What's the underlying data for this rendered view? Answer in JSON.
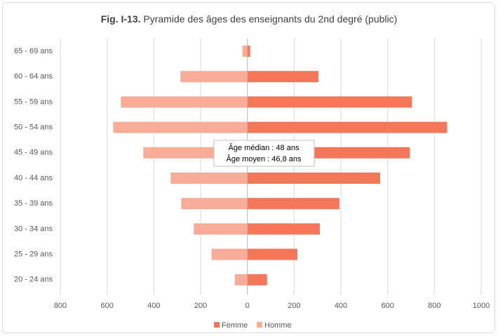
{
  "chart_data": {
    "type": "pyramid",
    "title_number": "Fig. I-13.",
    "title": "Pyramide des âges des enseignants du 2nd degré (public)",
    "categories": [
      "65 - 69 ans",
      "60 - 64 ans",
      "55 - 59 ans",
      "50 - 54 ans",
      "45 - 49 ans",
      "40 - 44 ans",
      "35 - 39 ans",
      "30 - 34 ans",
      "25 - 29 ans",
      "20 - 24 ans"
    ],
    "series": [
      {
        "name": "Femme",
        "color": "#f4775a",
        "values": [
          12,
          304,
          704,
          854,
          695,
          568,
          394,
          310,
          214,
          84
        ]
      },
      {
        "name": "Homme",
        "color": "#f8ac98",
        "values": [
          -21,
          -286,
          -541,
          -574,
          -445,
          -328,
          -283,
          -229,
          -153,
          -54
        ]
      }
    ],
    "xlim": [
      -800,
      1000
    ],
    "xticks": [
      {
        "value": -800,
        "label": "800"
      },
      {
        "value": -600,
        "label": "600"
      },
      {
        "value": -400,
        "label": "400"
      },
      {
        "value": -200,
        "label": "200"
      },
      0,
      200,
      400,
      600,
      800,
      1000
    ],
    "grid": true,
    "legend": "bottom",
    "annotation": [
      "Âge médian : 48 ans",
      "Âge moyen : 46,8 ans"
    ]
  }
}
